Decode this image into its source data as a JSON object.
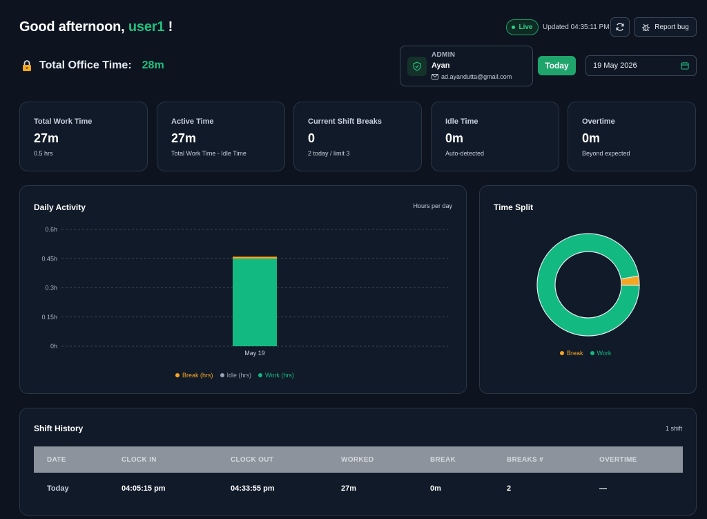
{
  "header": {
    "greeting_prefix": "Good afternoon, ",
    "user": "user1",
    "greeting_suffix": " !",
    "office_label": "Total Office Time:",
    "office_value": "28m",
    "live_label": "Live",
    "updated": "Updated 04:35:11 PM",
    "report_bug": "Report bug"
  },
  "admin": {
    "role": "ADMIN",
    "name": "Ayan",
    "email": "ad.ayandutta@gmail.com"
  },
  "controls": {
    "today_label": "Today",
    "date_value": "19 May 2026"
  },
  "stats": [
    {
      "label": "Total Work Time",
      "value": "27m",
      "sub": "0.5 hrs"
    },
    {
      "label": "Active Time",
      "value": "27m",
      "sub": "Total Work Time - Idle Time"
    },
    {
      "label": "Current Shift Breaks",
      "value": "0",
      "sub": "2 today / limit 3"
    },
    {
      "label": "Idle Time",
      "value": "0m",
      "sub": "Auto-detected"
    },
    {
      "label": "Overtime",
      "value": "0m",
      "sub": "Beyond expected"
    }
  ],
  "daily_activity": {
    "title": "Daily Activity",
    "note": "Hours per day"
  },
  "time_split": {
    "title": "Time Split"
  },
  "chart_data": [
    {
      "type": "bar",
      "title": "Daily Activity",
      "ylabel": "",
      "xlabel": "",
      "categories": [
        "May 19"
      ],
      "stacked": true,
      "series": [
        {
          "name": "Break (hrs)",
          "values": [
            0.01
          ],
          "color": "#f5a623"
        },
        {
          "name": "Idle (hrs)",
          "values": [
            0
          ],
          "color": "#9aa3b2"
        },
        {
          "name": "Work (hrs)",
          "values": [
            0.45
          ],
          "color": "#12b981"
        }
      ],
      "yticks": [
        "0h",
        "0.15h",
        "0.3h",
        "0.45h",
        "0.6h"
      ],
      "ylim": [
        0,
        0.6
      ],
      "grid": true,
      "legend": "bottom"
    },
    {
      "type": "pie",
      "title": "Time Split",
      "donut": true,
      "slices": [
        {
          "name": "Break",
          "value": 0.03,
          "color": "#f5a623"
        },
        {
          "name": "Work",
          "value": 0.97,
          "color": "#12b981"
        }
      ],
      "legend": "bottom"
    }
  ],
  "shift_history": {
    "title": "Shift History",
    "count": "1 shift",
    "columns": [
      "DATE",
      "CLOCK IN",
      "CLOCK OUT",
      "WORKED",
      "BREAK",
      "BREAKS #",
      "OVERTIME"
    ],
    "rows": [
      [
        "Today",
        "04:05:15 pm",
        "04:33:55 pm",
        "27m",
        "0m",
        "2",
        "—"
      ]
    ]
  },
  "colors": {
    "accent": "#22c07f",
    "break": "#f5a623",
    "work": "#12b981",
    "idle": "#9aa3b2"
  }
}
